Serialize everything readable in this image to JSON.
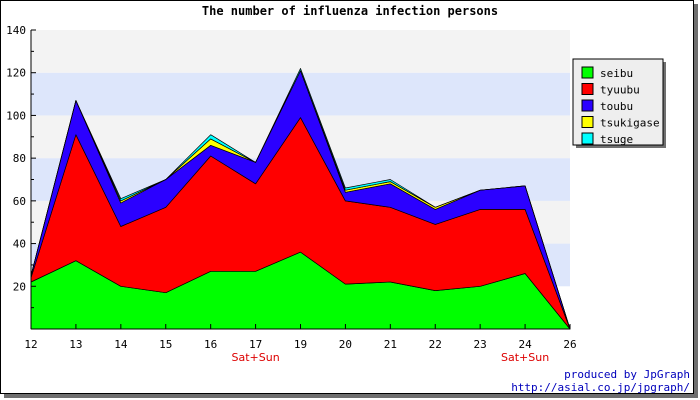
{
  "chart_data": {
    "type": "area",
    "stacked": true,
    "title": "The number of influenza infection persons",
    "xlabel": "",
    "ylabel": "",
    "categories": [
      "12",
      "13",
      "14",
      "15",
      "16",
      "17",
      "19",
      "20",
      "21",
      "22",
      "23",
      "24",
      "26"
    ],
    "weekend_labels": [
      {
        "category": "17",
        "label": "Sat+Sun"
      },
      {
        "category": "24",
        "label": "Sat+Sun"
      }
    ],
    "ylim": [
      0,
      140
    ],
    "yticks": [
      20,
      40,
      60,
      80,
      100,
      120,
      140
    ],
    "series": [
      {
        "name": "seibu",
        "color": "#00ff00",
        "values": [
          22,
          32,
          20,
          17,
          27,
          27,
          36,
          21,
          22,
          18,
          20,
          26,
          0
        ]
      },
      {
        "name": "tyuubu",
        "color": "#ff0000",
        "values": [
          2,
          59,
          28,
          40,
          54,
          41,
          63,
          39,
          35,
          31,
          36,
          30,
          0
        ]
      },
      {
        "name": "toubu",
        "color": "#2b00ff",
        "values": [
          1,
          16,
          11,
          13,
          5,
          10,
          22,
          4,
          11,
          7,
          9,
          11,
          0
        ]
      },
      {
        "name": "tsukigase",
        "color": "#ffff00",
        "values": [
          0,
          0,
          1,
          0,
          3,
          0,
          0,
          1,
          1,
          1,
          0,
          0,
          0
        ]
      },
      {
        "name": "tsuge",
        "color": "#00ffff",
        "values": [
          0,
          0,
          1,
          0,
          2,
          0,
          1,
          1,
          1,
          0,
          0,
          0,
          0
        ]
      }
    ],
    "grid": true,
    "legend_position": "right"
  },
  "credits": {
    "line1": "produced by JpGraph",
    "line2": "http://asial.co.jp/jpgraph/"
  }
}
